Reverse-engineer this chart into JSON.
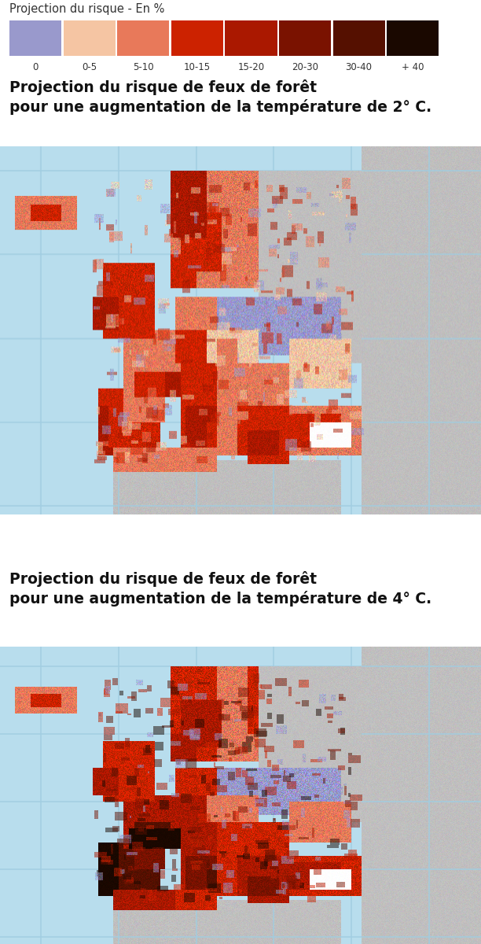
{
  "title_legend": "Projection du risque - En %",
  "legend_colors": [
    "#9999cc",
    "#f5c5a3",
    "#e8795a",
    "#cc2200",
    "#aa1800",
    "#7a1200",
    "#551000",
    "#1a0800"
  ],
  "legend_labels": [
    "0",
    "0-5",
    "5-10",
    "10-15",
    "15-20",
    "20-30",
    "30-40",
    "+ 40"
  ],
  "title1": "Projection du risque de feux de forêt \npour une augmentation de la température de 2° C.",
  "title2": "Projection du risque de feux de forêt \npour une augmentation de la température de 4° C.",
  "background_color": "#ffffff",
  "ocean_color": "#b8dded",
  "land_grey_color": "#c0bfbf",
  "border_color": "#888888",
  "title_fontsize": 13.5,
  "legend_title_fontsize": 10.5,
  "fig_width": 6.12,
  "fig_height": 12.0,
  "dpi": 100
}
